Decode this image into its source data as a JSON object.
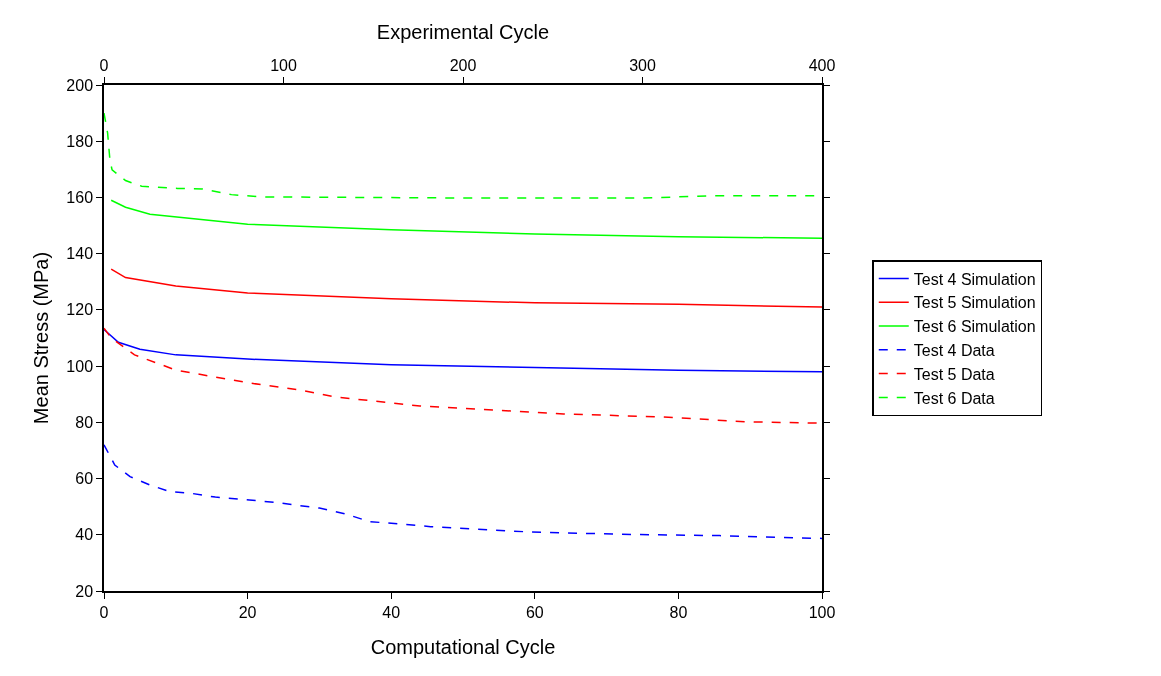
{
  "chart_data": {
    "type": "line",
    "xlabel": "Computational Cycle",
    "x2label": "Experimental Cycle",
    "ylabel": "Mean Stress (MPa)",
    "xlim": [
      0,
      100
    ],
    "xticks": [
      0,
      20,
      40,
      60,
      80,
      100
    ],
    "x2lim": [
      0,
      400
    ],
    "x2ticks": [
      0,
      100,
      200,
      300,
      400
    ],
    "ylim": [
      20,
      200
    ],
    "yticks": [
      20,
      40,
      60,
      80,
      100,
      120,
      140,
      160,
      180,
      200
    ],
    "legend": "right",
    "marker": "none",
    "series": [
      {
        "name": "Test 4 Simulation",
        "color": "#0000ff",
        "line_style": "solid",
        "x": [
          0,
          2,
          5,
          10,
          20,
          40,
          60,
          80,
          100
        ],
        "values": [
          113,
          108.5,
          106,
          104,
          102.5,
          100.5,
          99.5,
          98.5,
          98
        ]
      },
      {
        "name": "Test 5 Simulation",
        "color": "#ff0000",
        "line_style": "solid",
        "x": [
          1,
          3,
          10,
          20,
          40,
          60,
          80,
          100
        ],
        "values": [
          134.5,
          131.5,
          128.5,
          126,
          124,
          122.5,
          122,
          121
        ]
      },
      {
        "name": "Test 6 Simulation",
        "color": "#00ff00",
        "line_style": "solid",
        "x": [
          1,
          3,
          6.4,
          20,
          40,
          60,
          80,
          100
        ],
        "values": [
          159,
          156.5,
          154,
          150.5,
          148.5,
          147,
          146,
          145.5
        ]
      },
      {
        "name": "Test 4 Data",
        "color": "#0000ff",
        "line_style": "dashed",
        "axis": "x2",
        "x": [
          0,
          6,
          14.5,
          25.6,
          37,
          48,
          62,
          81,
          98,
          120,
          134,
          148,
          182,
          237,
          287,
          343,
          400
        ],
        "values": [
          72,
          64.8,
          60.7,
          57.7,
          55.3,
          54.8,
          53.4,
          52.4,
          51.3,
          49.5,
          47.5,
          44.7,
          42.9,
          41,
          40.2,
          39.7,
          38.7
        ]
      },
      {
        "name": "Test 5 Data",
        "color": "#ff0000",
        "line_style": "dashed",
        "axis": "x2",
        "x": [
          0,
          4,
          8,
          17,
          40,
          62,
          81,
          109,
          128,
          176,
          256,
          311,
          358,
          400
        ],
        "values": [
          113.5,
          110,
          108.2,
          104,
          98.6,
          96.1,
          94,
          91.5,
          89.1,
          85.8,
          83,
          81.9,
          80.2,
          79.7
        ]
      },
      {
        "name": "Test 6 Data",
        "color": "#00ff00",
        "line_style": "dashed",
        "axis": "x2",
        "x": [
          0,
          2,
          3.3,
          4.5,
          12,
          21,
          41,
          55,
          71,
          88,
          200,
          300,
          340,
          400
        ],
        "values": [
          190,
          183,
          173.3,
          169.8,
          166,
          164,
          163.2,
          163,
          161,
          160.2,
          159.8,
          159.8,
          160.6,
          160.6
        ]
      }
    ]
  }
}
